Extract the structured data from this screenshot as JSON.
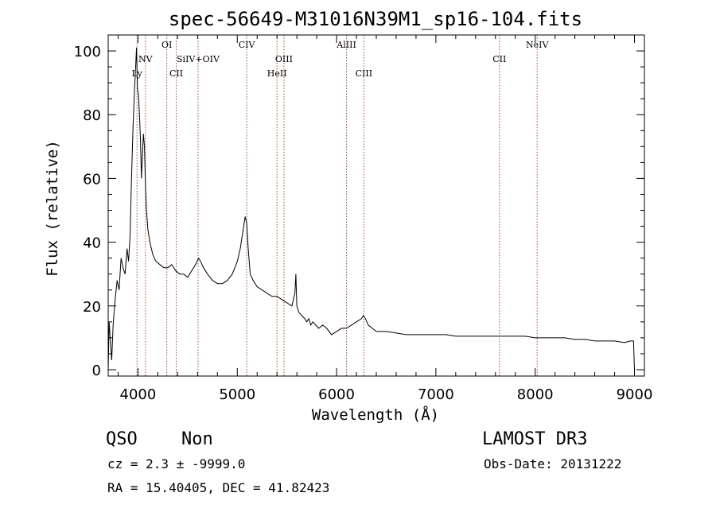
{
  "chart_data": {
    "type": "line",
    "title": "spec-56649-M31016N39M1_sp16-104.fits",
    "xlabel": "Wavelength (Å)",
    "ylabel": "Flux (relative)",
    "xlim": [
      3700,
      9100
    ],
    "ylim": [
      -2,
      105
    ],
    "xticks": [
      4000,
      5000,
      6000,
      7000,
      8000,
      9000
    ],
    "yticks": [
      0,
      20,
      40,
      60,
      80,
      100
    ],
    "emission_lines": [
      {
        "name": "Ly",
        "x": 3990,
        "label_row": 3
      },
      {
        "name": "NV",
        "x": 4075,
        "label_row": 2
      },
      {
        "name": "OI",
        "x": 4290,
        "label_row": 1
      },
      {
        "name": "CII",
        "x": 4385,
        "label_row": 3
      },
      {
        "name": "SiIV+OIV",
        "x": 4605,
        "label_row": 2
      },
      {
        "name": "CIV",
        "x": 5095,
        "label_row": 1
      },
      {
        "name": "HeII",
        "x": 5400,
        "label_row": 3
      },
      {
        "name": "OIII",
        "x": 5470,
        "label_row": 2
      },
      {
        "name": "AlIII",
        "x": 6100,
        "label_row": 1
      },
      {
        "name": "CIII",
        "x": 6275,
        "label_row": 3
      },
      {
        "name": "CII",
        "x": 7640,
        "label_row": 2
      },
      {
        "name": "NeIV",
        "x": 8020,
        "label_row": 1
      }
    ],
    "series": [
      {
        "name": "spectrum",
        "x": [
          3700,
          3710,
          3720,
          3735,
          3750,
          3770,
          3790,
          3810,
          3830,
          3850,
          3870,
          3890,
          3905,
          3920,
          3935,
          3950,
          3965,
          3975,
          3985,
          3995,
          4005,
          4015,
          4025,
          4035,
          4045,
          4055,
          4065,
          4075,
          4085,
          4100,
          4120,
          4150,
          4180,
          4220,
          4260,
          4300,
          4340,
          4380,
          4420,
          4460,
          4500,
          4540,
          4580,
          4610,
          4630,
          4660,
          4700,
          4750,
          4800,
          4850,
          4900,
          4950,
          5000,
          5030,
          5060,
          5080,
          5095,
          5110,
          5130,
          5160,
          5200,
          5250,
          5300,
          5350,
          5400,
          5450,
          5500,
          5550,
          5580,
          5590,
          5600,
          5620,
          5650,
          5680,
          5700,
          5720,
          5740,
          5760,
          5790,
          5820,
          5860,
          5900,
          5950,
          6000,
          6050,
          6100,
          6150,
          6200,
          6250,
          6270,
          6290,
          6320,
          6360,
          6400,
          6450,
          6500,
          6600,
          6700,
          6800,
          6900,
          7000,
          7100,
          7200,
          7300,
          7400,
          7500,
          7600,
          7700,
          7800,
          7900,
          8000,
          8100,
          8200,
          8300,
          8400,
          8500,
          8600,
          8700,
          8800,
          8900,
          8960,
          8990,
          9000
        ],
        "y": [
          0,
          15,
          10,
          3,
          14,
          22,
          28,
          25,
          35,
          32,
          30,
          38,
          34,
          42,
          60,
          76,
          88,
          94,
          101,
          88,
          86,
          80,
          72,
          60,
          68,
          74,
          70,
          58,
          50,
          44,
          40,
          36,
          34,
          33,
          32,
          32,
          33,
          31,
          30,
          30,
          29,
          31,
          33,
          35,
          34,
          32,
          30,
          28,
          27,
          27,
          28,
          30,
          34,
          38,
          44,
          48,
          46,
          38,
          30,
          28,
          26,
          25,
          24,
          23,
          23,
          22,
          21,
          20,
          24,
          30,
          20,
          18,
          17,
          16,
          15,
          16,
          14,
          15,
          14,
          13,
          14,
          13,
          11,
          12,
          13,
          13,
          14,
          15,
          16,
          17,
          16,
          14,
          13,
          12,
          12,
          12,
          11.5,
          11,
          11,
          11,
          11,
          11,
          10.5,
          10.5,
          10.5,
          10.5,
          10.5,
          10.5,
          10.5,
          10.5,
          10,
          10,
          10,
          10,
          9.5,
          9.5,
          9,
          9,
          9,
          8.5,
          9,
          9,
          0
        ]
      }
    ]
  },
  "footer": {
    "class_label": "QSO",
    "subclass_label": "Non",
    "survey": "LAMOST DR3",
    "cz_text": "cz = 2.3 ± -9999.0",
    "obs_date": "Obs-Date: 20131222",
    "coords": "RA =  15.40405, DEC =  41.82423"
  }
}
